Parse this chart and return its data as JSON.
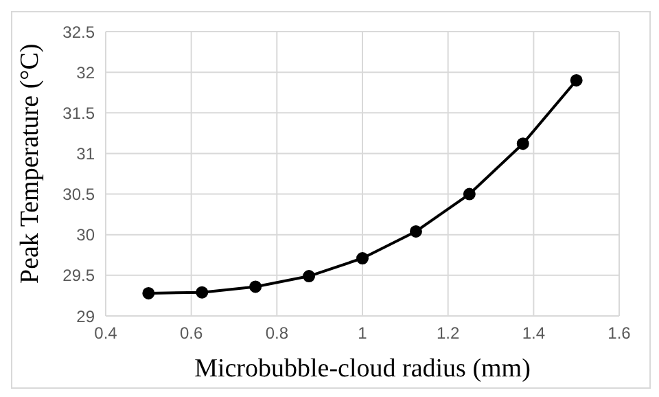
{
  "chart_data": {
    "type": "line",
    "xlabel": "Microbubble-cloud radius (mm)",
    "ylabel": "Peak Temperature (°C)",
    "x": [
      0.5,
      0.625,
      0.75,
      0.875,
      1,
      1.125,
      1.25,
      1.375,
      1.5
    ],
    "series": [
      {
        "color": "#000000",
        "values": [
          29.28,
          29.29,
          29.36,
          29.49,
          29.71,
          30.04,
          30.5,
          31.12,
          31.9
        ]
      }
    ],
    "xlim": [
      0.4,
      1.6
    ],
    "xticks": [
      0.4,
      0.6,
      0.8,
      1,
      1.2,
      1.4,
      1.6
    ],
    "ylim": [
      29,
      32.5
    ],
    "yticks": [
      29,
      29.5,
      30,
      30.5,
      31,
      31.5,
      32,
      32.5
    ],
    "grid": true,
    "legend": false,
    "marker": "circle",
    "line_style": "solid"
  }
}
